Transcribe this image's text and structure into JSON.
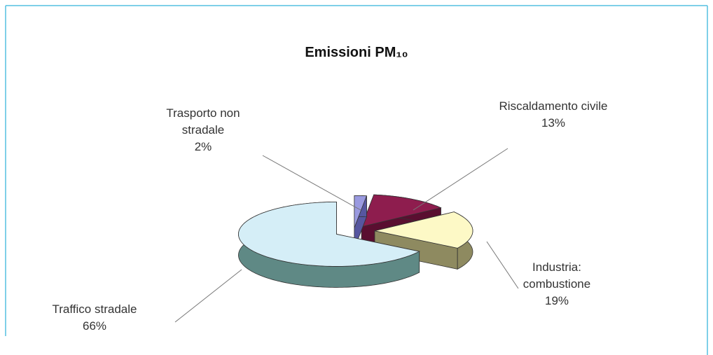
{
  "chart_data": {
    "type": "pie3d",
    "title": "Emissioni PM₁₀",
    "categories": [
      "Trasporto non stradale",
      "Riscaldamento civile",
      "Industria: combustione",
      "Traffico stradale"
    ],
    "values": [
      2,
      13,
      19,
      66
    ],
    "value_labels": [
      "2%",
      "13%",
      "19%",
      "66%"
    ],
    "colors": [
      "#9a9ae0",
      "#8e1d4e",
      "#fdf9c6",
      "#d5eef7"
    ],
    "side_colors": [
      "#5656a0",
      "#5a0e30",
      "#8e8a60",
      "#5f8985"
    ]
  }
}
